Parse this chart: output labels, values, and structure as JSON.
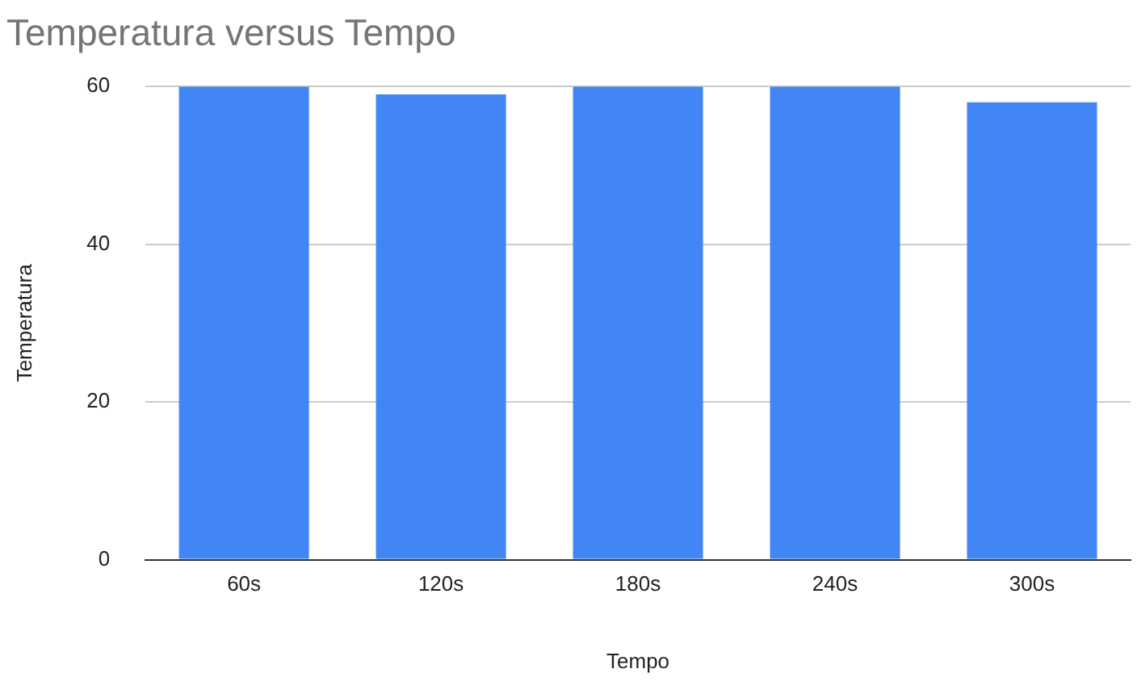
{
  "chart_data": {
    "type": "bar",
    "title": "Temperatura versus Tempo",
    "xlabel": "Tempo",
    "ylabel": "Temperatura",
    "categories": [
      "60s",
      "120s",
      "180s",
      "240s",
      "300s"
    ],
    "values": [
      60,
      59,
      60,
      60,
      58
    ],
    "color": "#4285f4",
    "ylim": [
      0,
      60
    ],
    "yticks": [
      0,
      20,
      40,
      60
    ],
    "grid": "y",
    "legend": false
  }
}
